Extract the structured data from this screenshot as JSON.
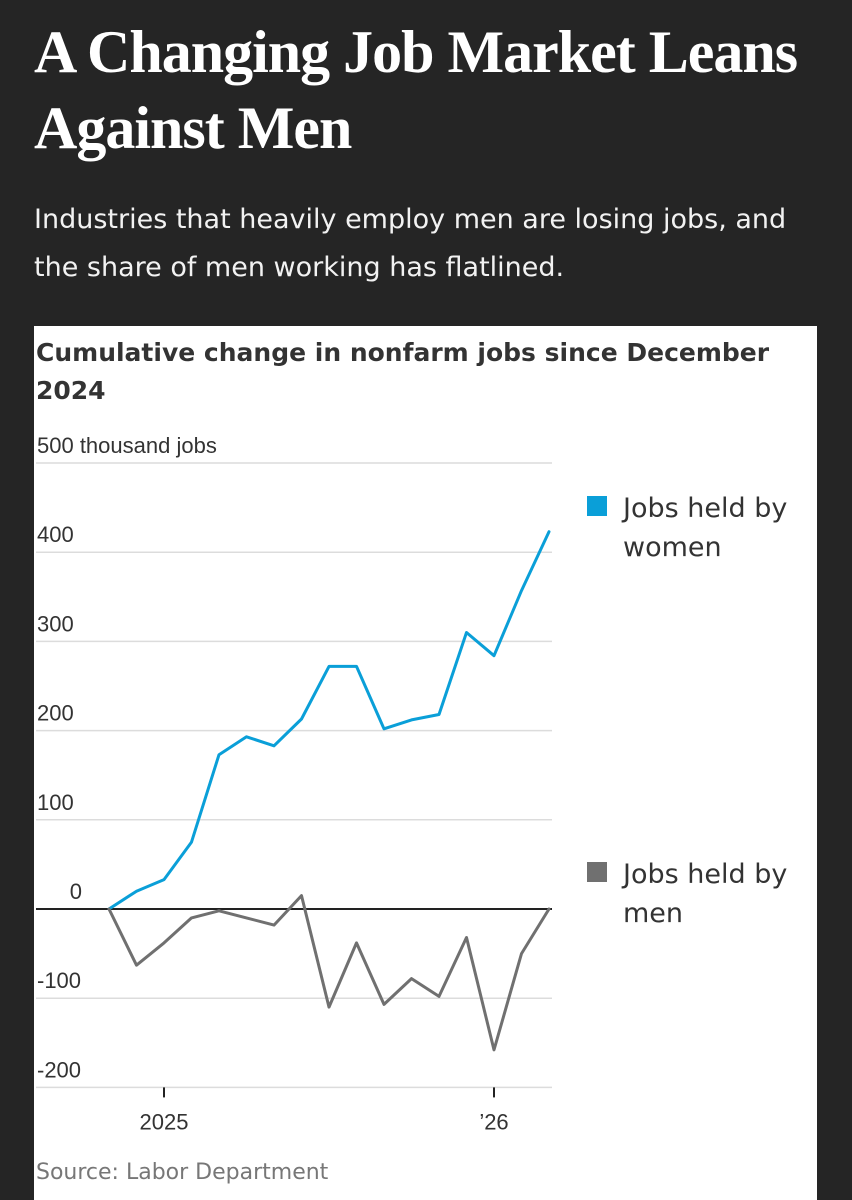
{
  "headline": "A Changing Job Market Leans Against Men",
  "dek": "Industries that heavily employ men are losing jobs, and the share of men working has flatlined.",
  "source": "Source: Labor Department",
  "chart_data": {
    "type": "line",
    "title": "Cumulative change in nonfarm jobs since December 2024",
    "ylabel": "thousand jobs",
    "ylim": [
      -200,
      500
    ],
    "y_ticks": [
      {
        "value": 500,
        "label": "500 thousand jobs"
      },
      {
        "value": 400,
        "label": "400"
      },
      {
        "value": 300,
        "label": "300"
      },
      {
        "value": 200,
        "label": "200"
      },
      {
        "value": 100,
        "label": "100"
      },
      {
        "value": 0,
        "label": "0"
      },
      {
        "value": -100,
        "label": "-100"
      },
      {
        "value": -200,
        "label": "-200"
      }
    ],
    "x_ticks": [
      {
        "month": "2025-01",
        "label": "2025"
      },
      {
        "month": "2026-01",
        "label": "’26"
      }
    ],
    "x": [
      "2024-12",
      "2025-01",
      "2025-02",
      "2025-03",
      "2025-04",
      "2025-05",
      "2025-06",
      "2025-07",
      "2025-08",
      "2025-09",
      "2025-10",
      "2025-11",
      "2025-12",
      "2026-01",
      "2026-02",
      "2026-03",
      "2026-04",
      "2026-05"
    ],
    "series": [
      {
        "name": "Jobs held by women",
        "color": "#0a9fd8",
        "values": [
          0,
          20,
          33,
          75,
          173,
          193,
          183,
          213,
          272,
          272,
          202,
          212,
          218,
          310,
          284,
          357,
          423,
          null
        ]
      },
      {
        "name": "Jobs held by men",
        "color": "#707070",
        "values": [
          0,
          -63,
          -38,
          -10,
          -2,
          -10,
          -18,
          15,
          -110,
          -38,
          -107,
          -78,
          -98,
          -32,
          -158,
          -50,
          0,
          null
        ]
      }
    ]
  }
}
